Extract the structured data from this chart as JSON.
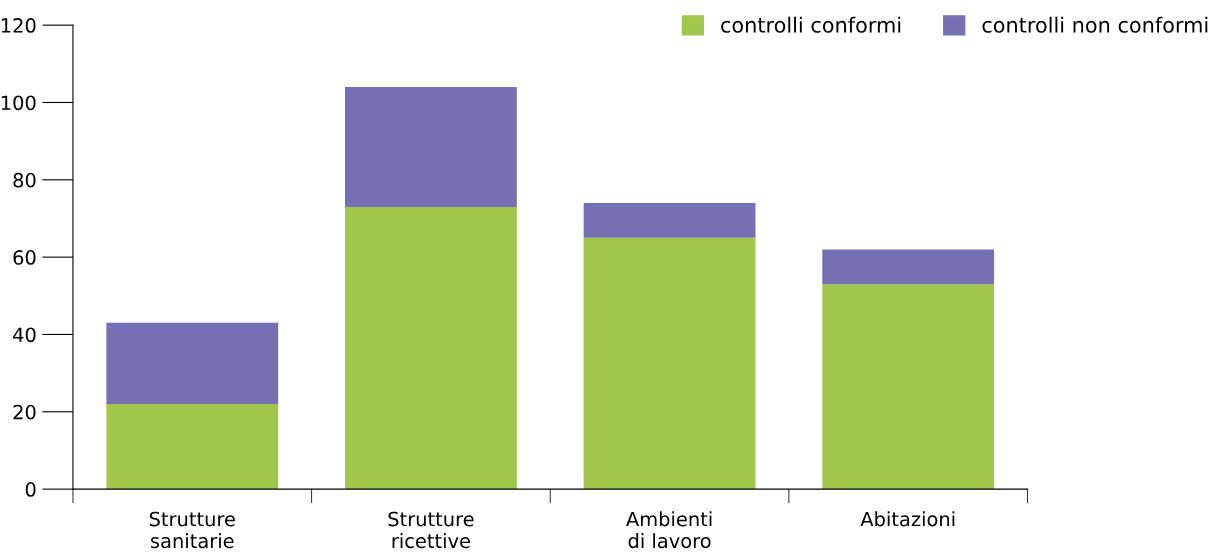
{
  "chart_data": {
    "type": "bar",
    "stacked": true,
    "categories": [
      "Strutture\nsanitarie",
      "Strutture\nricettive",
      "Ambienti\ndi lavoro",
      "Abitazioni"
    ],
    "series": [
      {
        "name": "controlli conformi",
        "color": "#a0c64c",
        "values": [
          22,
          73,
          65,
          53
        ]
      },
      {
        "name": "controlli non conformi",
        "color": "#7570b3",
        "values": [
          21,
          31,
          9,
          9
        ]
      }
    ],
    "ylim": [
      0,
      120
    ],
    "yticks": [
      0,
      20,
      40,
      60,
      80,
      100,
      120
    ],
    "grid": false,
    "legend": "top right"
  }
}
